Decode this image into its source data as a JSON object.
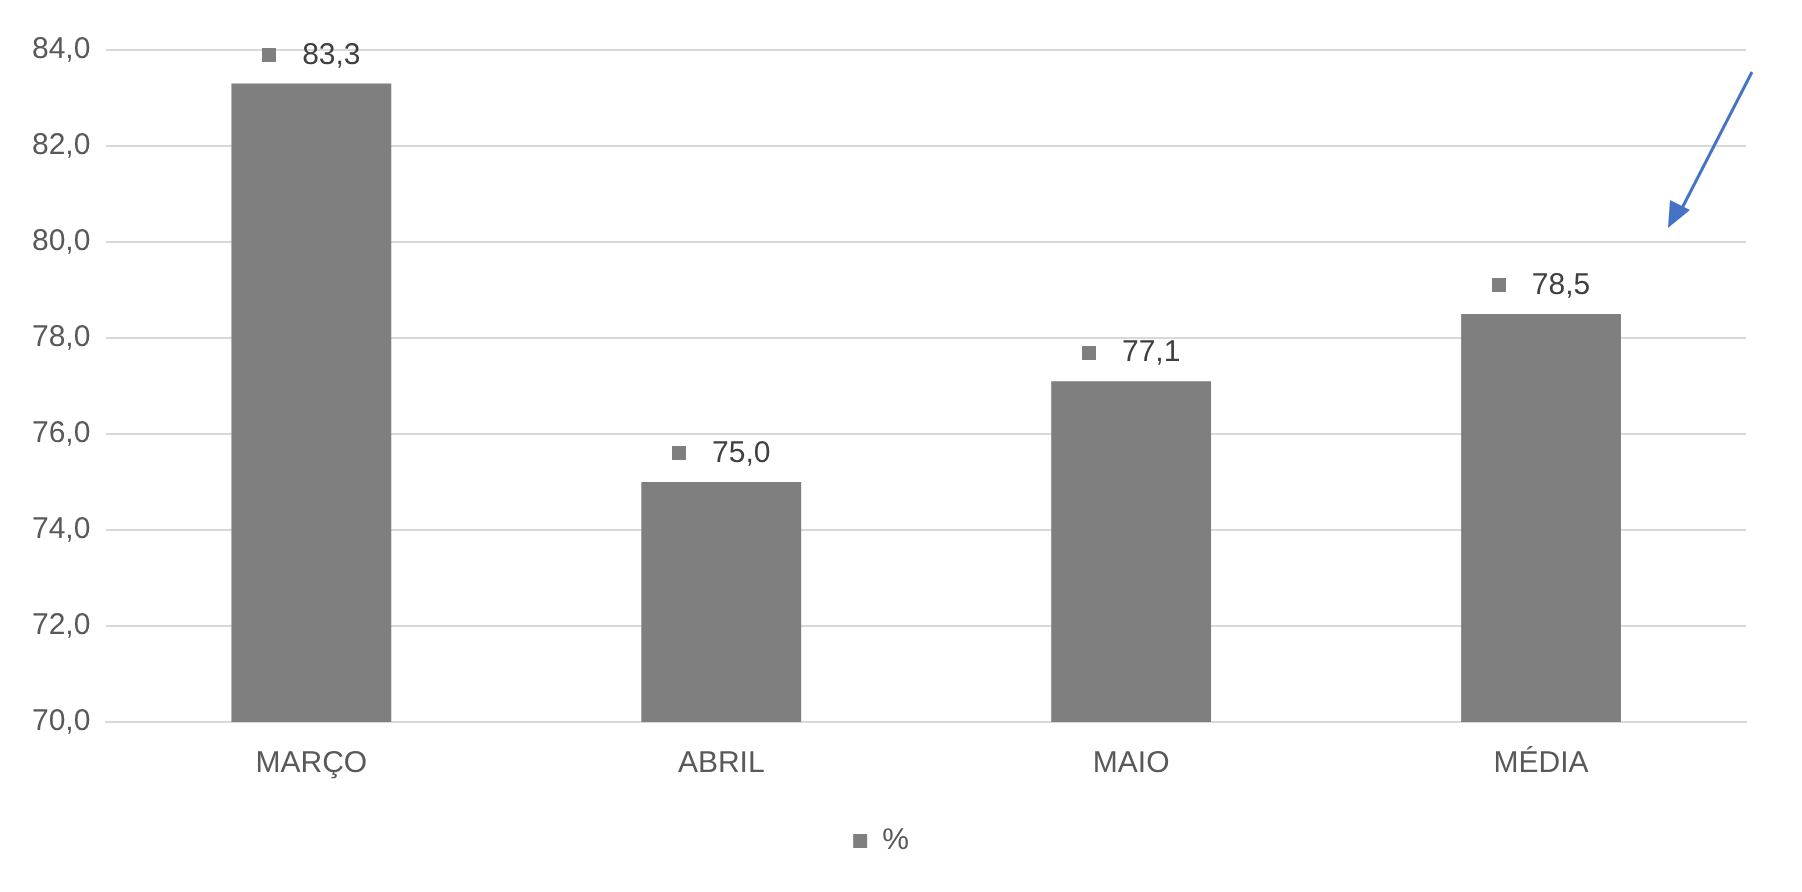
{
  "chart_data": {
    "type": "bar",
    "categories": [
      "MARÇO",
      "ABRIL",
      "MAIO",
      "MÉDIA"
    ],
    "series": [
      {
        "name": "%",
        "color": "#7f7f7f",
        "values": [
          83.3,
          75.0,
          77.1,
          78.5
        ],
        "value_labels": [
          "83,3",
          "75,0",
          "77,1",
          "78,5"
        ]
      }
    ],
    "ylim": [
      70,
      84
    ],
    "yticks": [
      {
        "value": 70,
        "label": "70,0"
      },
      {
        "value": 72,
        "label": "72,0"
      },
      {
        "value": 74,
        "label": "74,0"
      },
      {
        "value": 76,
        "label": "76,0"
      },
      {
        "value": 78,
        "label": "78,0"
      },
      {
        "value": 80,
        "label": "80,0"
      },
      {
        "value": 82,
        "label": "82,0"
      },
      {
        "value": 84,
        "label": "84,0"
      }
    ],
    "grid": "y",
    "legend": "bottom"
  }
}
